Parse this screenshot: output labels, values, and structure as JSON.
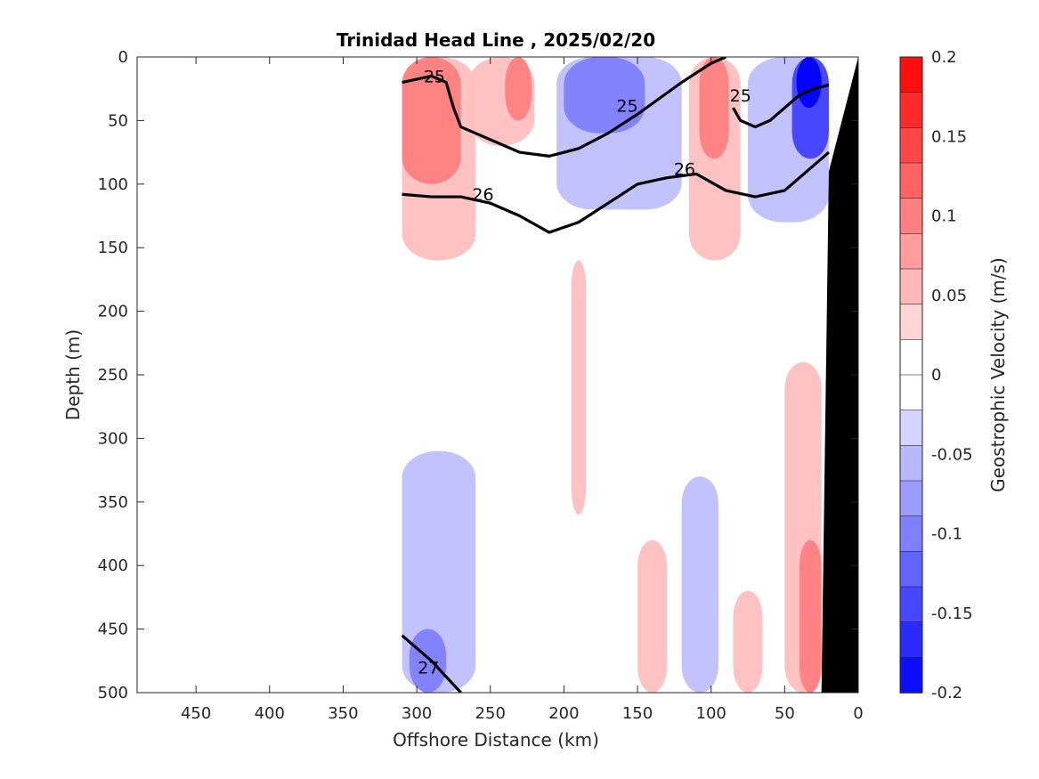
{
  "chart_data": {
    "type": "contour",
    "title": "Trinidad Head Line , 2025/02/20",
    "xlabel": "Offshore Distance (km)",
    "ylabel": "Depth (m)",
    "xlim": [
      490,
      0
    ],
    "ylim": [
      0,
      500
    ],
    "x_reversed": true,
    "y_reversed": true,
    "xticks": [
      "450",
      "400",
      "350",
      "300",
      "250",
      "200",
      "150",
      "100",
      "50",
      "0"
    ],
    "yticks": [
      "0",
      "50",
      "100",
      "150",
      "200",
      "250",
      "300",
      "350",
      "400",
      "450",
      "500"
    ],
    "colorbar": {
      "label": "Geostrophic Velocity (m/s)",
      "limits": [
        -0.2,
        0.2
      ],
      "ticks": [
        "0.2",
        "0.15",
        "0.1",
        "0.05",
        "0",
        "-0.05",
        "-0.1",
        "-0.15",
        "-0.2"
      ],
      "levels": 18,
      "positive_color": "#ff0000",
      "negative_color": "#0000ff"
    },
    "velocity_regions": [
      {
        "sign": "positive",
        "level": 0.05,
        "x": [
          310,
          260
        ],
        "depth": [
          0,
          160
        ]
      },
      {
        "sign": "positive",
        "level": 0.1,
        "x": [
          310,
          270
        ],
        "depth": [
          0,
          100
        ]
      },
      {
        "sign": "positive",
        "level": 0.05,
        "x": [
          265,
          220
        ],
        "depth": [
          0,
          70
        ]
      },
      {
        "sign": "positive",
        "level": 0.1,
        "x": [
          240,
          222
        ],
        "depth": [
          0,
          50
        ]
      },
      {
        "sign": "negative",
        "level": -0.05,
        "x": [
          205,
          120
        ],
        "depth": [
          0,
          120
        ]
      },
      {
        "sign": "negative",
        "level": -0.1,
        "x": [
          200,
          145
        ],
        "depth": [
          0,
          60
        ]
      },
      {
        "sign": "positive",
        "level": 0.05,
        "x": [
          115,
          80
        ],
        "depth": [
          0,
          160
        ]
      },
      {
        "sign": "positive",
        "level": 0.1,
        "x": [
          108,
          88
        ],
        "depth": [
          0,
          80
        ]
      },
      {
        "sign": "negative",
        "level": -0.05,
        "x": [
          75,
          20
        ],
        "depth": [
          0,
          130
        ]
      },
      {
        "sign": "negative",
        "level": -0.15,
        "x": [
          45,
          20
        ],
        "depth": [
          0,
          80
        ]
      },
      {
        "sign": "negative",
        "level": -0.2,
        "x": [
          42,
          25
        ],
        "depth": [
          0,
          40
        ]
      },
      {
        "sign": "positive",
        "level": 0.05,
        "x": [
          195,
          185
        ],
        "depth": [
          160,
          360
        ]
      },
      {
        "sign": "positive",
        "level": 0.05,
        "x": [
          50,
          25
        ],
        "depth": [
          240,
          500
        ]
      },
      {
        "sign": "positive",
        "level": 0.1,
        "x": [
          40,
          25
        ],
        "depth": [
          380,
          500
        ]
      },
      {
        "sign": "negative",
        "level": -0.05,
        "x": [
          310,
          260
        ],
        "depth": [
          310,
          500
        ]
      },
      {
        "sign": "negative",
        "level": -0.1,
        "x": [
          305,
          280
        ],
        "depth": [
          450,
          500
        ]
      },
      {
        "sign": "negative",
        "level": -0.05,
        "x": [
          120,
          95
        ],
        "depth": [
          330,
          500
        ]
      },
      {
        "sign": "positive",
        "level": 0.05,
        "x": [
          150,
          130
        ],
        "depth": [
          380,
          500
        ]
      },
      {
        "sign": "positive",
        "level": 0.05,
        "x": [
          85,
          65
        ],
        "depth": [
          420,
          500
        ]
      }
    ],
    "density_contours": [
      {
        "level": 25,
        "bold": true,
        "x": [
          310,
          290,
          280,
          275,
          270,
          250,
          230,
          210,
          190,
          170,
          150,
          120,
          100,
          90
        ],
        "depth": [
          20,
          15,
          20,
          40,
          55,
          65,
          75,
          78,
          72,
          60,
          45,
          20,
          5,
          0
        ]
      },
      {
        "level": 25,
        "bold": true,
        "x": [
          85,
          80,
          70,
          60,
          50,
          40,
          30,
          20
        ],
        "depth": [
          40,
          50,
          55,
          50,
          40,
          30,
          25,
          22
        ]
      },
      {
        "level": 26,
        "bold": true,
        "x": [
          310,
          290,
          270,
          250,
          230,
          210,
          190,
          170,
          150,
          130,
          110,
          90,
          70,
          50,
          20
        ],
        "depth": [
          108,
          110,
          110,
          115,
          125,
          138,
          130,
          115,
          100,
          95,
          92,
          105,
          110,
          105,
          75
        ]
      },
      {
        "level": 27,
        "bold": true,
        "x": [
          310,
          290,
          270
        ],
        "depth": [
          455,
          475,
          500
        ]
      }
    ],
    "contour_labels": [
      "25",
      "25",
      "25",
      "26",
      "26",
      "27"
    ],
    "bathymetry": {
      "color": "#000000",
      "x": [
        0,
        0,
        25,
        20,
        0
      ],
      "depth": [
        0,
        500,
        500,
        90,
        0
      ]
    }
  }
}
